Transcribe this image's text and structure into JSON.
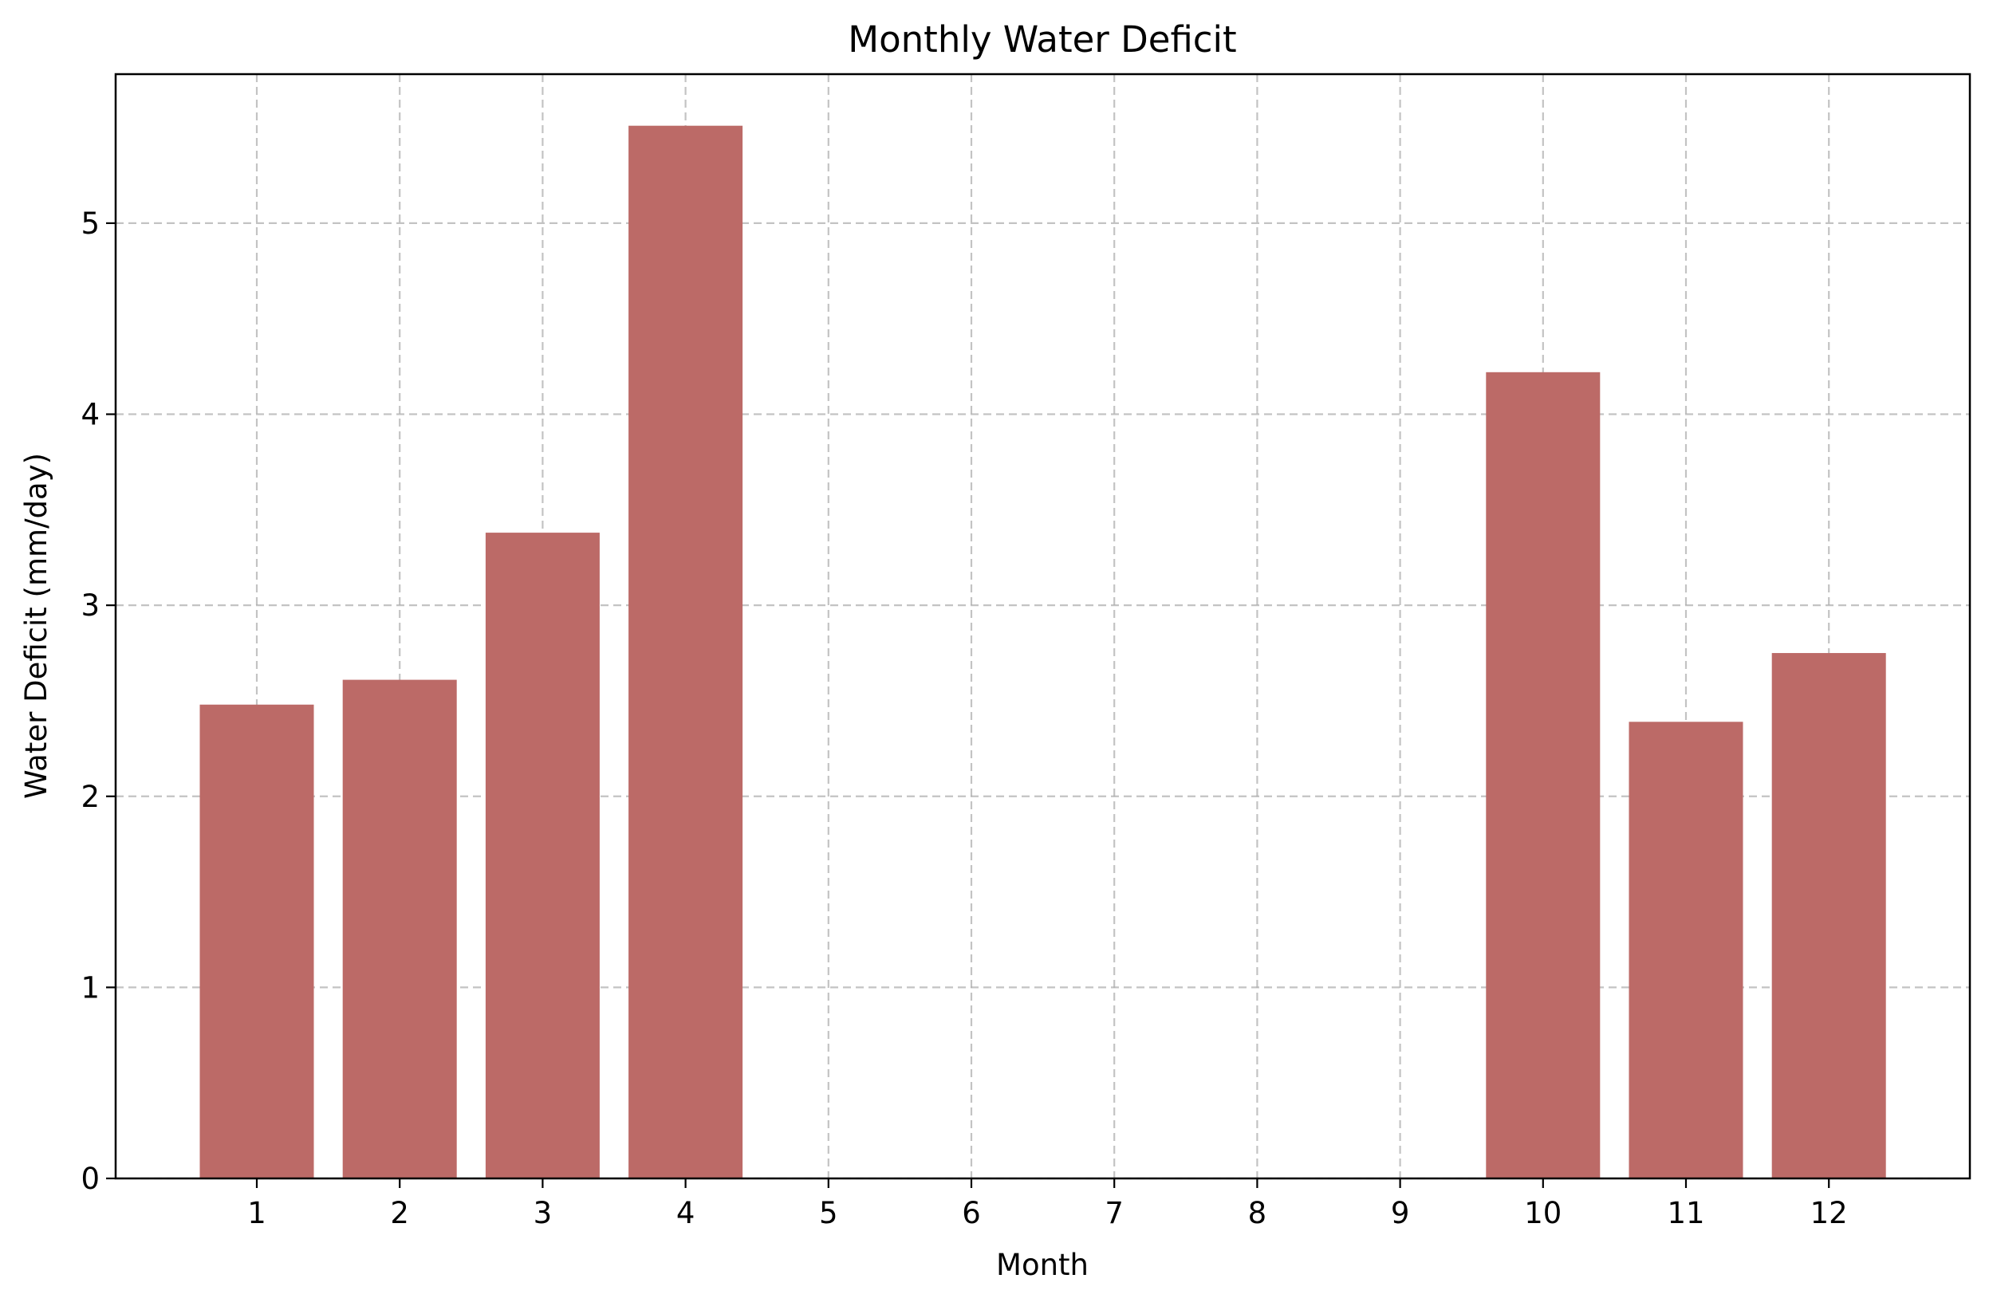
{
  "chart_data": {
    "type": "bar",
    "title": "Monthly Water Deficit",
    "xlabel": "Month",
    "ylabel": "Water Deficit (mm/day)",
    "categories": [
      "1",
      "2",
      "3",
      "4",
      "5",
      "6",
      "7",
      "8",
      "9",
      "10",
      "11",
      "12"
    ],
    "values": [
      2.48,
      2.61,
      3.38,
      5.51,
      0,
      0,
      0,
      0,
      0,
      4.22,
      2.39,
      2.75
    ],
    "ylim": [
      0,
      5.78
    ],
    "yticks": [
      "0",
      "1",
      "2",
      "3",
      "4",
      "5"
    ],
    "grid": true,
    "bar_color": "#bc6a67"
  }
}
